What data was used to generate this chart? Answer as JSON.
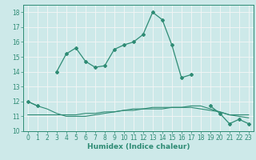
{
  "xlabel": "Humidex (Indice chaleur)",
  "x": [
    0,
    1,
    2,
    3,
    4,
    5,
    6,
    7,
    8,
    9,
    10,
    11,
    12,
    13,
    14,
    15,
    16,
    17,
    18,
    19,
    20,
    21,
    22,
    23
  ],
  "line_main": [
    12.0,
    11.7,
    null,
    14.0,
    15.2,
    15.6,
    14.7,
    14.3,
    14.4,
    15.5,
    15.8,
    16.0,
    16.5,
    18.0,
    17.5,
    15.8,
    13.6,
    13.8,
    null,
    11.7,
    11.2,
    10.5,
    10.8,
    10.5
  ],
  "line_flat": [
    11.1,
    11.1,
    11.1,
    11.1,
    11.1,
    11.1,
    11.2,
    11.2,
    11.3,
    11.3,
    11.4,
    11.4,
    11.5,
    11.5,
    11.5,
    11.6,
    11.6,
    11.6,
    11.5,
    11.4,
    11.3,
    11.1,
    11.1,
    11.1
  ],
  "line_diag": [
    12.0,
    11.7,
    11.5,
    11.2,
    11.0,
    11.0,
    11.0,
    11.1,
    11.2,
    11.3,
    11.4,
    11.5,
    11.5,
    11.6,
    11.6,
    11.6,
    11.6,
    11.7,
    11.7,
    11.5,
    11.3,
    11.1,
    11.0,
    10.9
  ],
  "ylim": [
    10,
    18.5
  ],
  "xlim": [
    -0.5,
    23.5
  ],
  "yticks": [
    10,
    11,
    12,
    13,
    14,
    15,
    16,
    17,
    18
  ],
  "xticks": [
    0,
    1,
    2,
    3,
    4,
    5,
    6,
    7,
    8,
    9,
    10,
    11,
    12,
    13,
    14,
    15,
    16,
    17,
    18,
    19,
    20,
    21,
    22,
    23
  ],
  "line_color": "#2e8b74",
  "bg_color": "#cde9e9",
  "grid_color": "#f5f5f5",
  "xlabel_fontsize": 6.5,
  "tick_fontsize": 5.5
}
